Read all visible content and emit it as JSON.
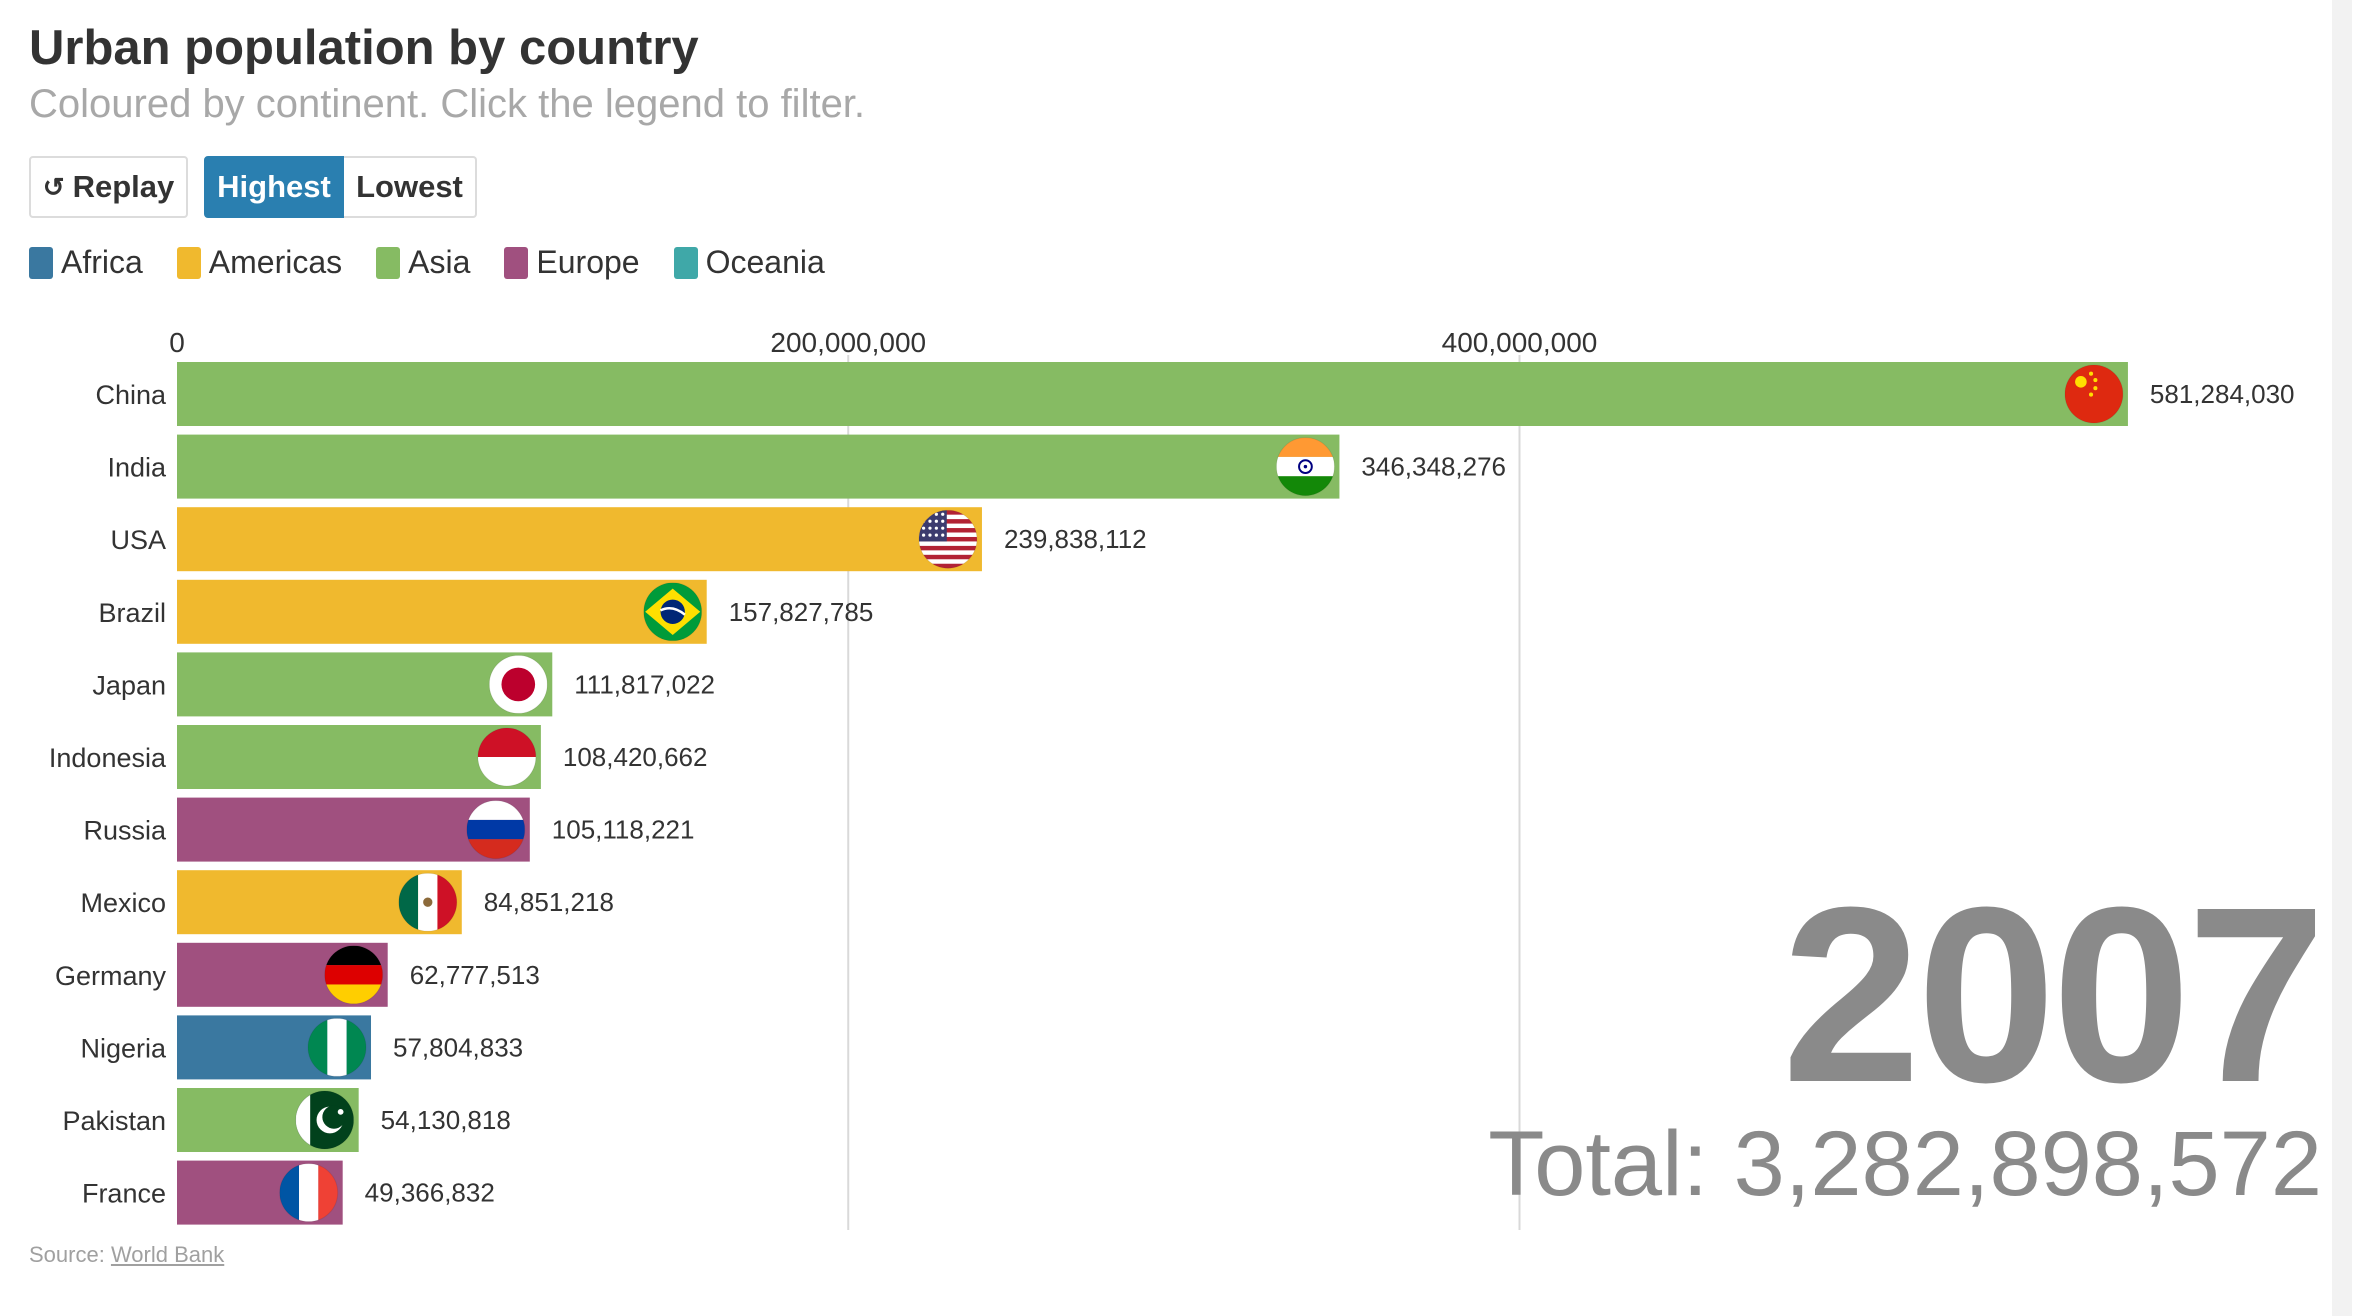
{
  "header": {
    "title": "Urban population by country",
    "subtitle": "Coloured by continent. Click the legend to filter."
  },
  "controls": {
    "replay_icon": "↺",
    "replay_label": "Replay",
    "highest_label": "Highest",
    "lowest_label": "Lowest",
    "active": "Highest"
  },
  "legend": [
    {
      "label": "Africa",
      "color": "#3a78a0"
    },
    {
      "label": "Americas",
      "color": "#f0b92e"
    },
    {
      "label": "Asia",
      "color": "#86bb63"
    },
    {
      "label": "Europe",
      "color": "#a0507f"
    },
    {
      "label": "Oceania",
      "color": "#3fa8a8"
    }
  ],
  "chart_data": {
    "type": "bar",
    "orientation": "horizontal",
    "categories": [
      "China",
      "India",
      "USA",
      "Brazil",
      "Japan",
      "Indonesia",
      "Russia",
      "Mexico",
      "Germany",
      "Nigeria",
      "Pakistan",
      "France"
    ],
    "values": [
      581284030,
      346348276,
      239838112,
      157827785,
      111817022,
      108420662,
      105118221,
      84851218,
      62777513,
      57804833,
      54130818,
      49366832
    ],
    "value_labels": [
      "581,284,030",
      "346,348,276",
      "239,838,112",
      "157,827,785",
      "111,817,022",
      "108,420,662",
      "105,118,221",
      "84,851,218",
      "62,777,513",
      "57,804,833",
      "54,130,818",
      "49,366,832"
    ],
    "continents": [
      "Asia",
      "Asia",
      "Americas",
      "Americas",
      "Asia",
      "Asia",
      "Europe",
      "Americas",
      "Europe",
      "Africa",
      "Asia",
      "Europe"
    ],
    "flags": [
      "china-flag",
      "india-flag",
      "usa-flag",
      "brazil-flag",
      "japan-flag",
      "indonesia-flag",
      "russia-flag",
      "mexico-flag",
      "germany-flag",
      "nigeria-flag",
      "pakistan-flag",
      "france-flag"
    ],
    "x_ticks": [
      0,
      200000000,
      400000000
    ],
    "x_tick_labels": [
      "0",
      "200,000,000",
      "400,000,000"
    ],
    "xlim": [
      0,
      640000000
    ],
    "grid": true,
    "axis_position": "top"
  },
  "year": "2007",
  "total_label": "Total: 3,282,898,572",
  "source": {
    "prefix": "Source: ",
    "link_text": "World Bank"
  }
}
